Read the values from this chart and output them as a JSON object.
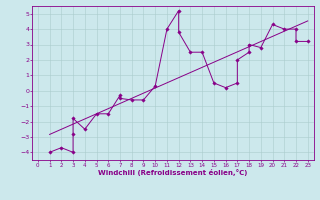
{
  "xlabel": "Windchill (Refroidissement éolien,°C)",
  "bg_color": "#cce8ec",
  "line_color": "#880088",
  "grid_color": "#aacccc",
  "xlim": [
    -0.5,
    23.5
  ],
  "ylim": [
    -4.5,
    5.5
  ],
  "xticks": [
    0,
    1,
    2,
    3,
    4,
    5,
    6,
    7,
    8,
    9,
    10,
    11,
    12,
    13,
    14,
    15,
    16,
    17,
    18,
    19,
    20,
    21,
    22,
    23
  ],
  "yticks": [
    -4,
    -3,
    -2,
    -1,
    0,
    1,
    2,
    3,
    4,
    5
  ],
  "points": [
    [
      1,
      -4.0
    ],
    [
      2,
      -3.7
    ],
    [
      3,
      -4.0
    ],
    [
      3,
      -2.8
    ],
    [
      3,
      -1.8
    ],
    [
      4,
      -2.5
    ],
    [
      5,
      -1.5
    ],
    [
      6,
      -1.5
    ],
    [
      7,
      -0.3
    ],
    [
      7,
      -0.5
    ],
    [
      8,
      -0.6
    ],
    [
      9,
      -0.6
    ],
    [
      10,
      0.3
    ],
    [
      11,
      4.0
    ],
    [
      12,
      5.2
    ],
    [
      12,
      3.8
    ],
    [
      13,
      2.5
    ],
    [
      14,
      2.5
    ],
    [
      15,
      0.5
    ],
    [
      16,
      0.2
    ],
    [
      17,
      0.5
    ],
    [
      17,
      2.0
    ],
    [
      18,
      2.5
    ],
    [
      18,
      3.0
    ],
    [
      19,
      2.8
    ],
    [
      20,
      4.3
    ],
    [
      21,
      4.0
    ],
    [
      22,
      4.0
    ],
    [
      22,
      3.2
    ],
    [
      23,
      3.2
    ]
  ]
}
